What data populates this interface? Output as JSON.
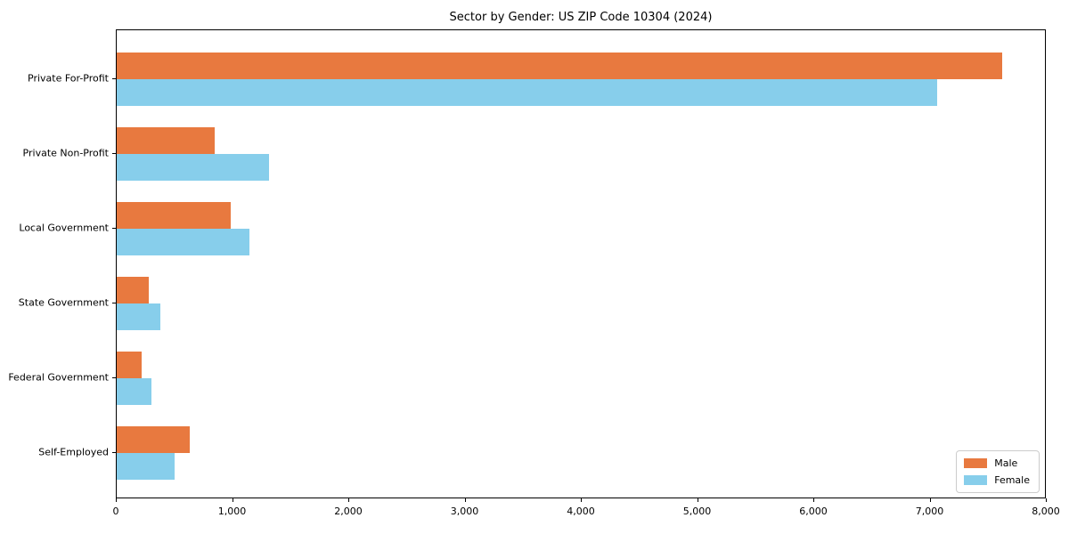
{
  "chart_data": {
    "type": "bar",
    "orientation": "horizontal",
    "title": "Sector by Gender: US ZIP Code 10304 (2024)",
    "categories": [
      "Private For-Profit",
      "Private Non-Profit",
      "Local Government",
      "State Government",
      "Federal Government",
      "Self-Employed"
    ],
    "series": [
      {
        "name": "Male",
        "color": "#E8793F",
        "values": [
          7620,
          845,
          980,
          275,
          215,
          630
        ]
      },
      {
        "name": "Female",
        "color": "#87CEEB",
        "values": [
          7060,
          1310,
          1140,
          375,
          300,
          500
        ]
      }
    ],
    "xlabel": "",
    "ylabel": "",
    "xlim": [
      0,
      8000
    ],
    "x_ticks": [
      0,
      1000,
      2000,
      3000,
      4000,
      5000,
      6000,
      7000,
      8000
    ],
    "x_tick_labels": [
      "0",
      "1,000",
      "2,000",
      "3,000",
      "4,000",
      "5,000",
      "6,000",
      "7,000",
      "8,000"
    ],
    "legend_position": "lower right",
    "grid": false,
    "colors": {
      "male": "#E8793F",
      "female": "#87CEEB",
      "spine": "#000000",
      "text": "#000000"
    }
  }
}
